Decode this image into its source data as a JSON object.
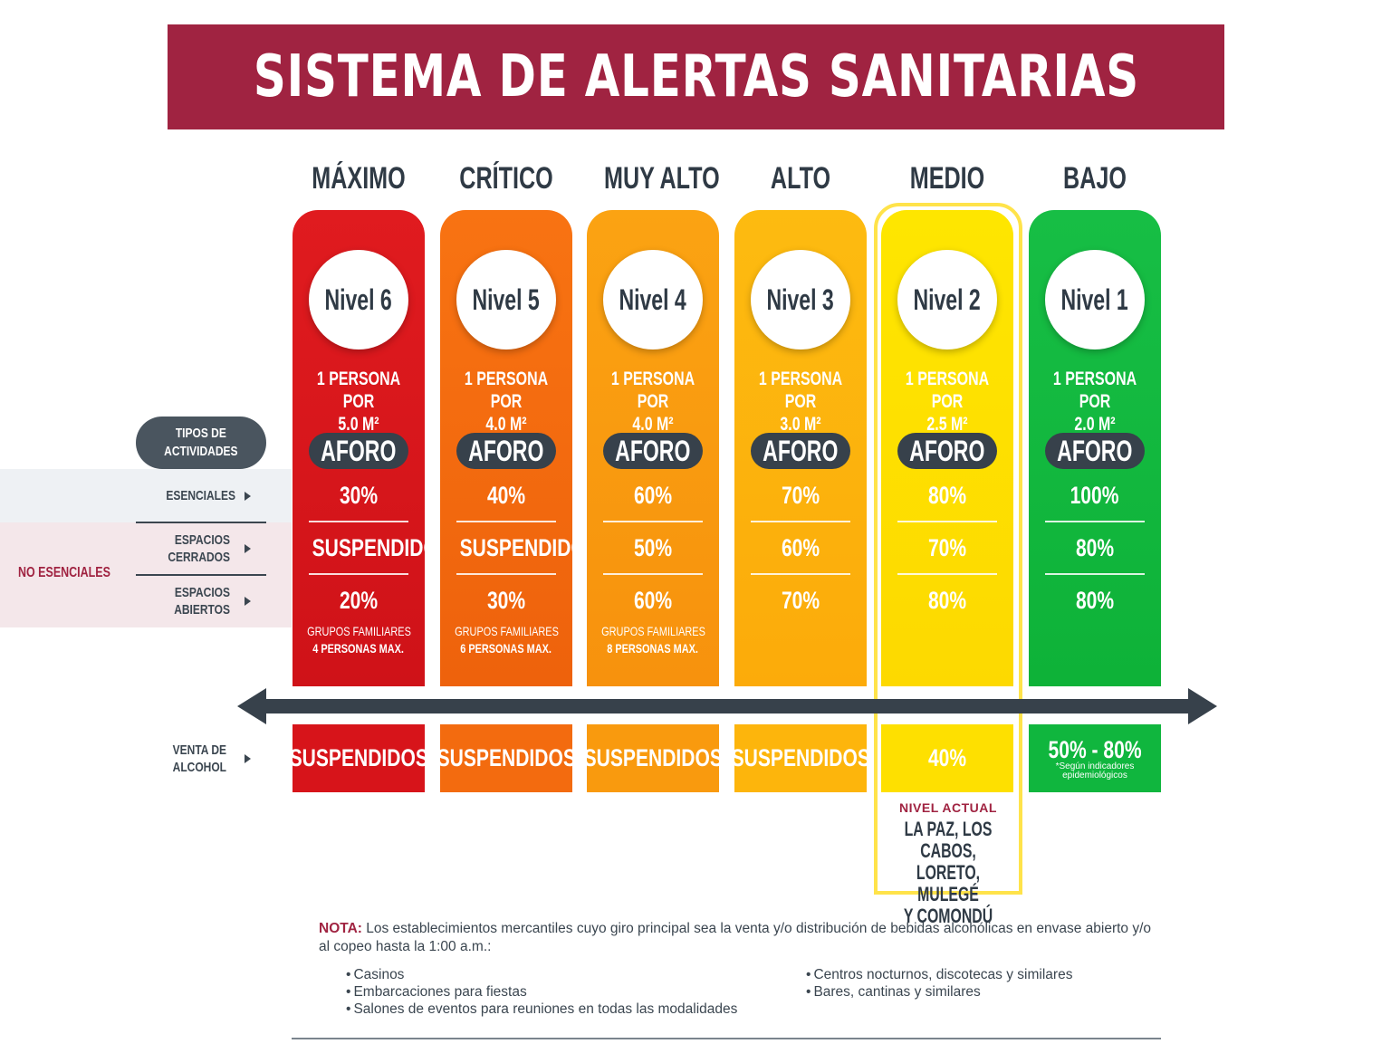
{
  "title": "SISTEMA DE ALERTAS SANITARIAS",
  "row_labels": {
    "tipos": "TIPOS DE\nACTIVIDADES",
    "esenciales": "ESENCIALES",
    "no_esenciales": "NO ESENCIALES",
    "espacios_cerrados": "ESPACIOS\nCERRADOS",
    "espacios_abiertos": "ESPACIOS\nABIERTOS",
    "venta_alcohol": "VENTA DE\nALCOHOL"
  },
  "aforo_label": "AFORO",
  "colors": {
    "title_bar": "#a02341",
    "level_6": "#d7141a",
    "level_5": "#f36b0f",
    "level_4": "#f99a0e",
    "level_3": "#fdb50c",
    "level_2": "#fee000",
    "level_1": "#10b63e",
    "dark": "#37414b"
  },
  "levels": [
    {
      "name": "MÁXIMO",
      "nivel": "Nivel 6",
      "density": "1 PERSONA POR\n5.0 M²",
      "esenciales": "30%",
      "cerrados": "SUSPENDIDOS",
      "abiertos": "20%",
      "grupos_line1": "GRUPOS FAMILIARES",
      "grupos_line2": "4 PERSONAS MAX.",
      "alcohol": "SUSPENDIDOS"
    },
    {
      "name": "CRÍTICO",
      "nivel": "Nivel 5",
      "density": "1 PERSONA POR\n4.0 M²",
      "esenciales": "40%",
      "cerrados": "SUSPENDIDOS",
      "abiertos": "30%",
      "grupos_line1": "GRUPOS FAMILIARES",
      "grupos_line2": "6 PERSONAS MAX.",
      "alcohol": "SUSPENDIDOS"
    },
    {
      "name": "MUY ALTO",
      "nivel": "Nivel 4",
      "density": "1 PERSONA POR\n4.0 M²",
      "esenciales": "60%",
      "cerrados": "50%",
      "abiertos": "60%",
      "grupos_line1": "GRUPOS FAMILIARES",
      "grupos_line2": "8 PERSONAS MAX.",
      "alcohol": "SUSPENDIDOS"
    },
    {
      "name": "ALTO",
      "nivel": "Nivel 3",
      "density": "1 PERSONA POR\n3.0 M²",
      "esenciales": "70%",
      "cerrados": "60%",
      "abiertos": "70%",
      "alcohol": "SUSPENDIDOS"
    },
    {
      "name": "MEDIO",
      "nivel": "Nivel 2",
      "density": "1 PERSONA POR\n2.5 M²",
      "esenciales": "80%",
      "cerrados": "70%",
      "abiertos": "80%",
      "alcohol": "40%"
    },
    {
      "name": "BAJO",
      "nivel": "Nivel 1",
      "density": "1 PERSONA POR\n2.0 M²",
      "esenciales": "100%",
      "cerrados": "80%",
      "abiertos": "80%",
      "alcohol": "50% - 80%",
      "alcohol_note": "*Según indicadores\nepidemiológicos"
    }
  ],
  "current_level": {
    "label": "NIVEL ACTUAL",
    "places": "LA PAZ, LOS CABOS,\nLORETO, MULEGÉ\nY COMONDÚ"
  },
  "nota": {
    "label": "NOTA:",
    "text": "Los establecimientos mercantiles cuyo giro principal sea la venta y/o distribución de bebidas alcohólicas en envase abierto y/o al copeo hasta la 1:00 a.m.:",
    "bullets_left": [
      "Casinos",
      "Embarcaciones para fiestas",
      "Salones de eventos para reuniones en todas las modalidades"
    ],
    "bullets_right": [
      "Centros nocturnos, discotecas y similares",
      "Bares, cantinas y similares"
    ]
  }
}
